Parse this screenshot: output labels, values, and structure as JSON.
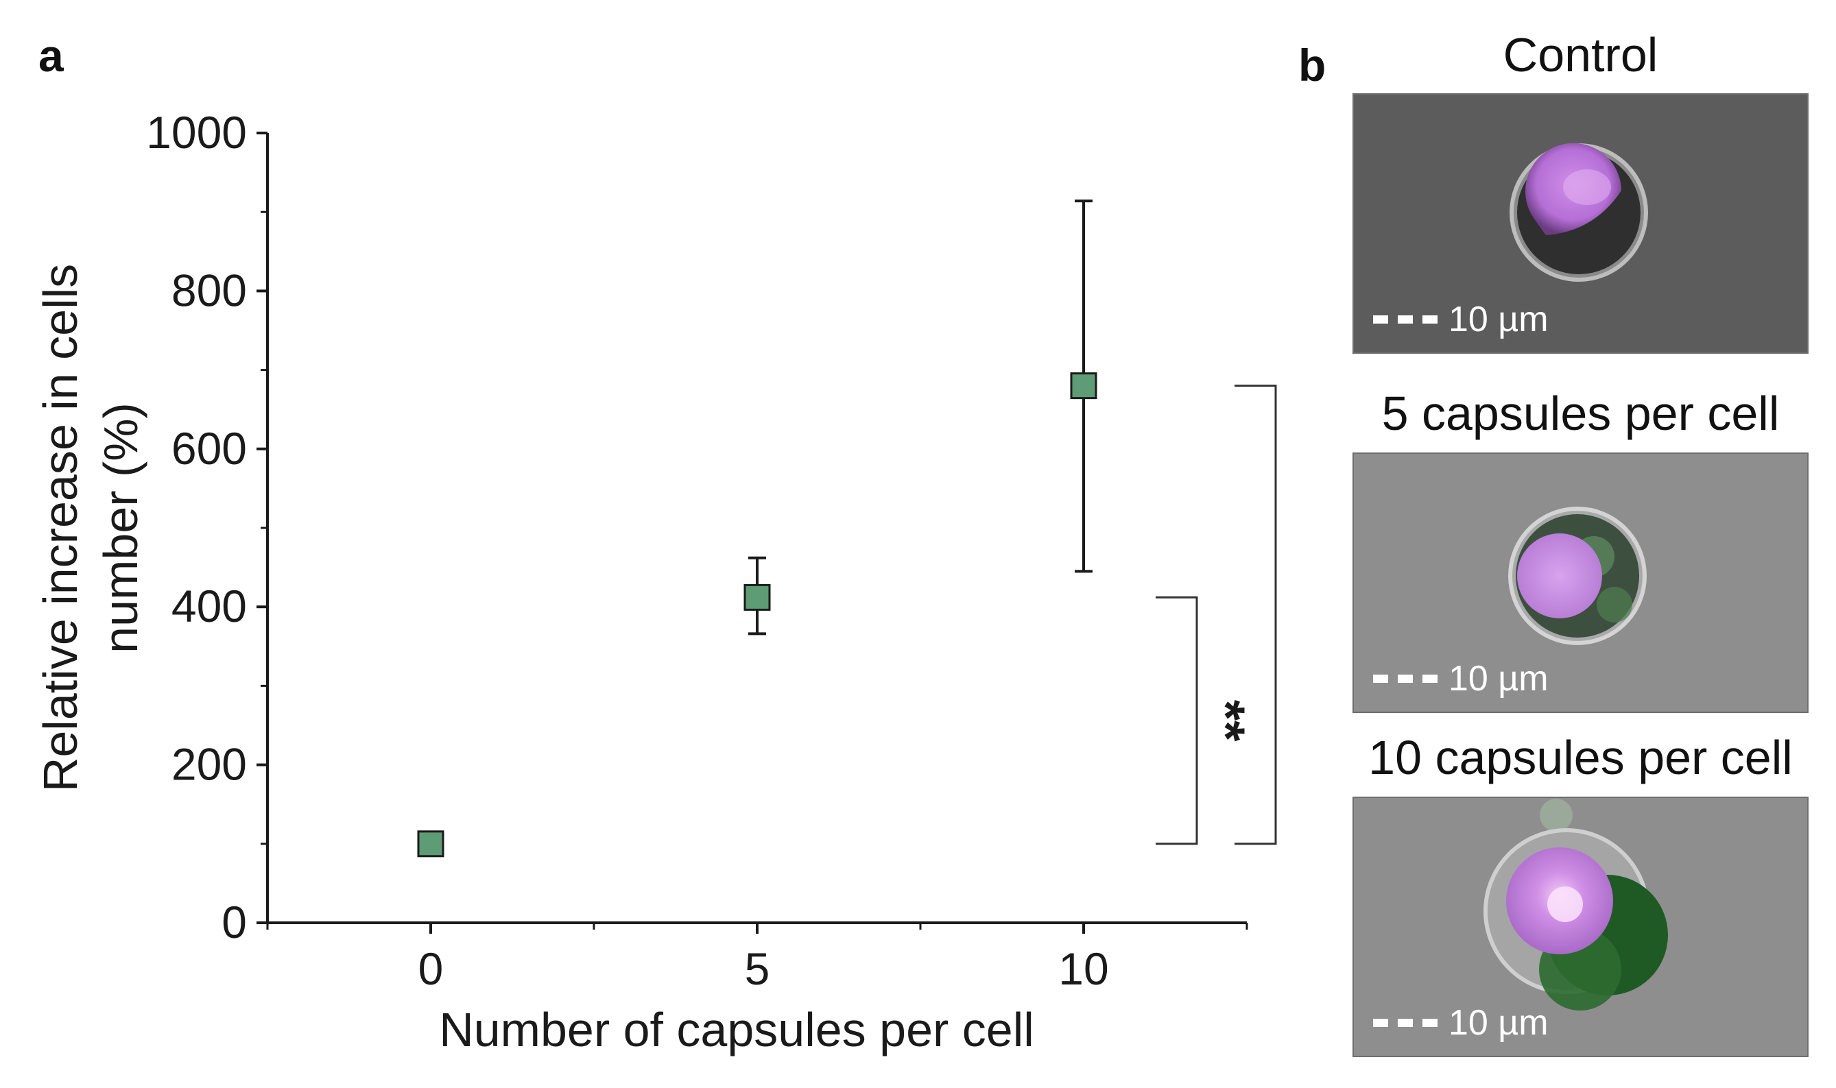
{
  "panel_a_letter": "a",
  "panel_b_letter": "b",
  "chart_data": {
    "type": "scatter",
    "xlabel": "Number of capsules per cell",
    "ylabel_line1": "Relative increase in cells",
    "ylabel_line2": "number (%)",
    "xlim": [
      -2.5,
      12.5
    ],
    "ylim": [
      0,
      1000
    ],
    "x_ticks": [
      0,
      5,
      10
    ],
    "y_ticks": [
      0,
      200,
      400,
      600,
      800,
      1000
    ],
    "grid": false,
    "marker_color": "#5d9c74",
    "points": [
      {
        "x": 0,
        "y": 100,
        "yerr_low": 92,
        "yerr_high": 108
      },
      {
        "x": 5,
        "y": 412,
        "yerr_low": 366,
        "yerr_high": 462
      },
      {
        "x": 10,
        "y": 680,
        "yerr_low": 445,
        "yerr_high": 914
      }
    ],
    "significance": [
      {
        "label": "**",
        "from_y": 100,
        "to_y": 412
      },
      {
        "label": "**",
        "from_y": 100,
        "to_y": 680
      }
    ]
  },
  "panel_b": {
    "images": [
      {
        "title": "Control",
        "scale_label": "10 µm",
        "background": "#5c5c5c"
      },
      {
        "title": "5 capsules per cell",
        "scale_label": "10 µm",
        "background": "#8e8e8e"
      },
      {
        "title": "10 capsules per cell",
        "scale_label": "10 µm",
        "background": "#8e8e8e"
      }
    ]
  }
}
